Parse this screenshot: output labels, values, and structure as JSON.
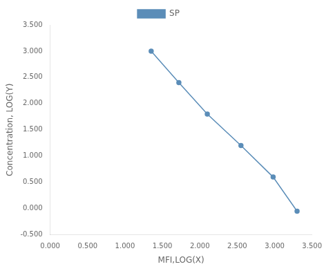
{
  "chart_data": {
    "type": "line",
    "xlabel": "MFI,LOG(X)",
    "ylabel": "Concentration, LOG(Y)",
    "x": [
      1.35,
      1.72,
      2.1,
      2.55,
      2.98,
      3.3
    ],
    "series": [
      {
        "name": "SP",
        "color": "#5b8db8",
        "marker": "circle",
        "line_style": "solid",
        "values": [
          3.0,
          2.4,
          1.8,
          1.2,
          0.6,
          -0.05
        ]
      }
    ],
    "xlim": [
      0.0,
      3.5
    ],
    "ylim": [
      -0.5,
      3.5
    ],
    "xticks": [
      {
        "value": 0.0,
        "label": "0.000"
      },
      {
        "value": 0.5,
        "label": "0.500"
      },
      {
        "value": 1.0,
        "label": "1.000"
      },
      {
        "value": 1.5,
        "label": "1.500"
      },
      {
        "value": 2.0,
        "label": "2.000"
      },
      {
        "value": 2.5,
        "label": "2.500"
      },
      {
        "value": 3.0,
        "label": "3.000"
      },
      {
        "value": 3.5,
        "label": "3.500"
      }
    ],
    "yticks": [
      {
        "value": -0.5,
        "label": "-0.500"
      },
      {
        "value": 0.0,
        "label": "0.000"
      },
      {
        "value": 0.5,
        "label": "0.500"
      },
      {
        "value": 1.0,
        "label": "1.000"
      },
      {
        "value": 1.5,
        "label": "1.500"
      },
      {
        "value": 2.0,
        "label": "2.000"
      },
      {
        "value": 2.5,
        "label": "2.500"
      },
      {
        "value": 3.0,
        "label": "3.000"
      },
      {
        "value": 3.5,
        "label": "3.500"
      }
    ],
    "grid": false,
    "legend": "top"
  }
}
